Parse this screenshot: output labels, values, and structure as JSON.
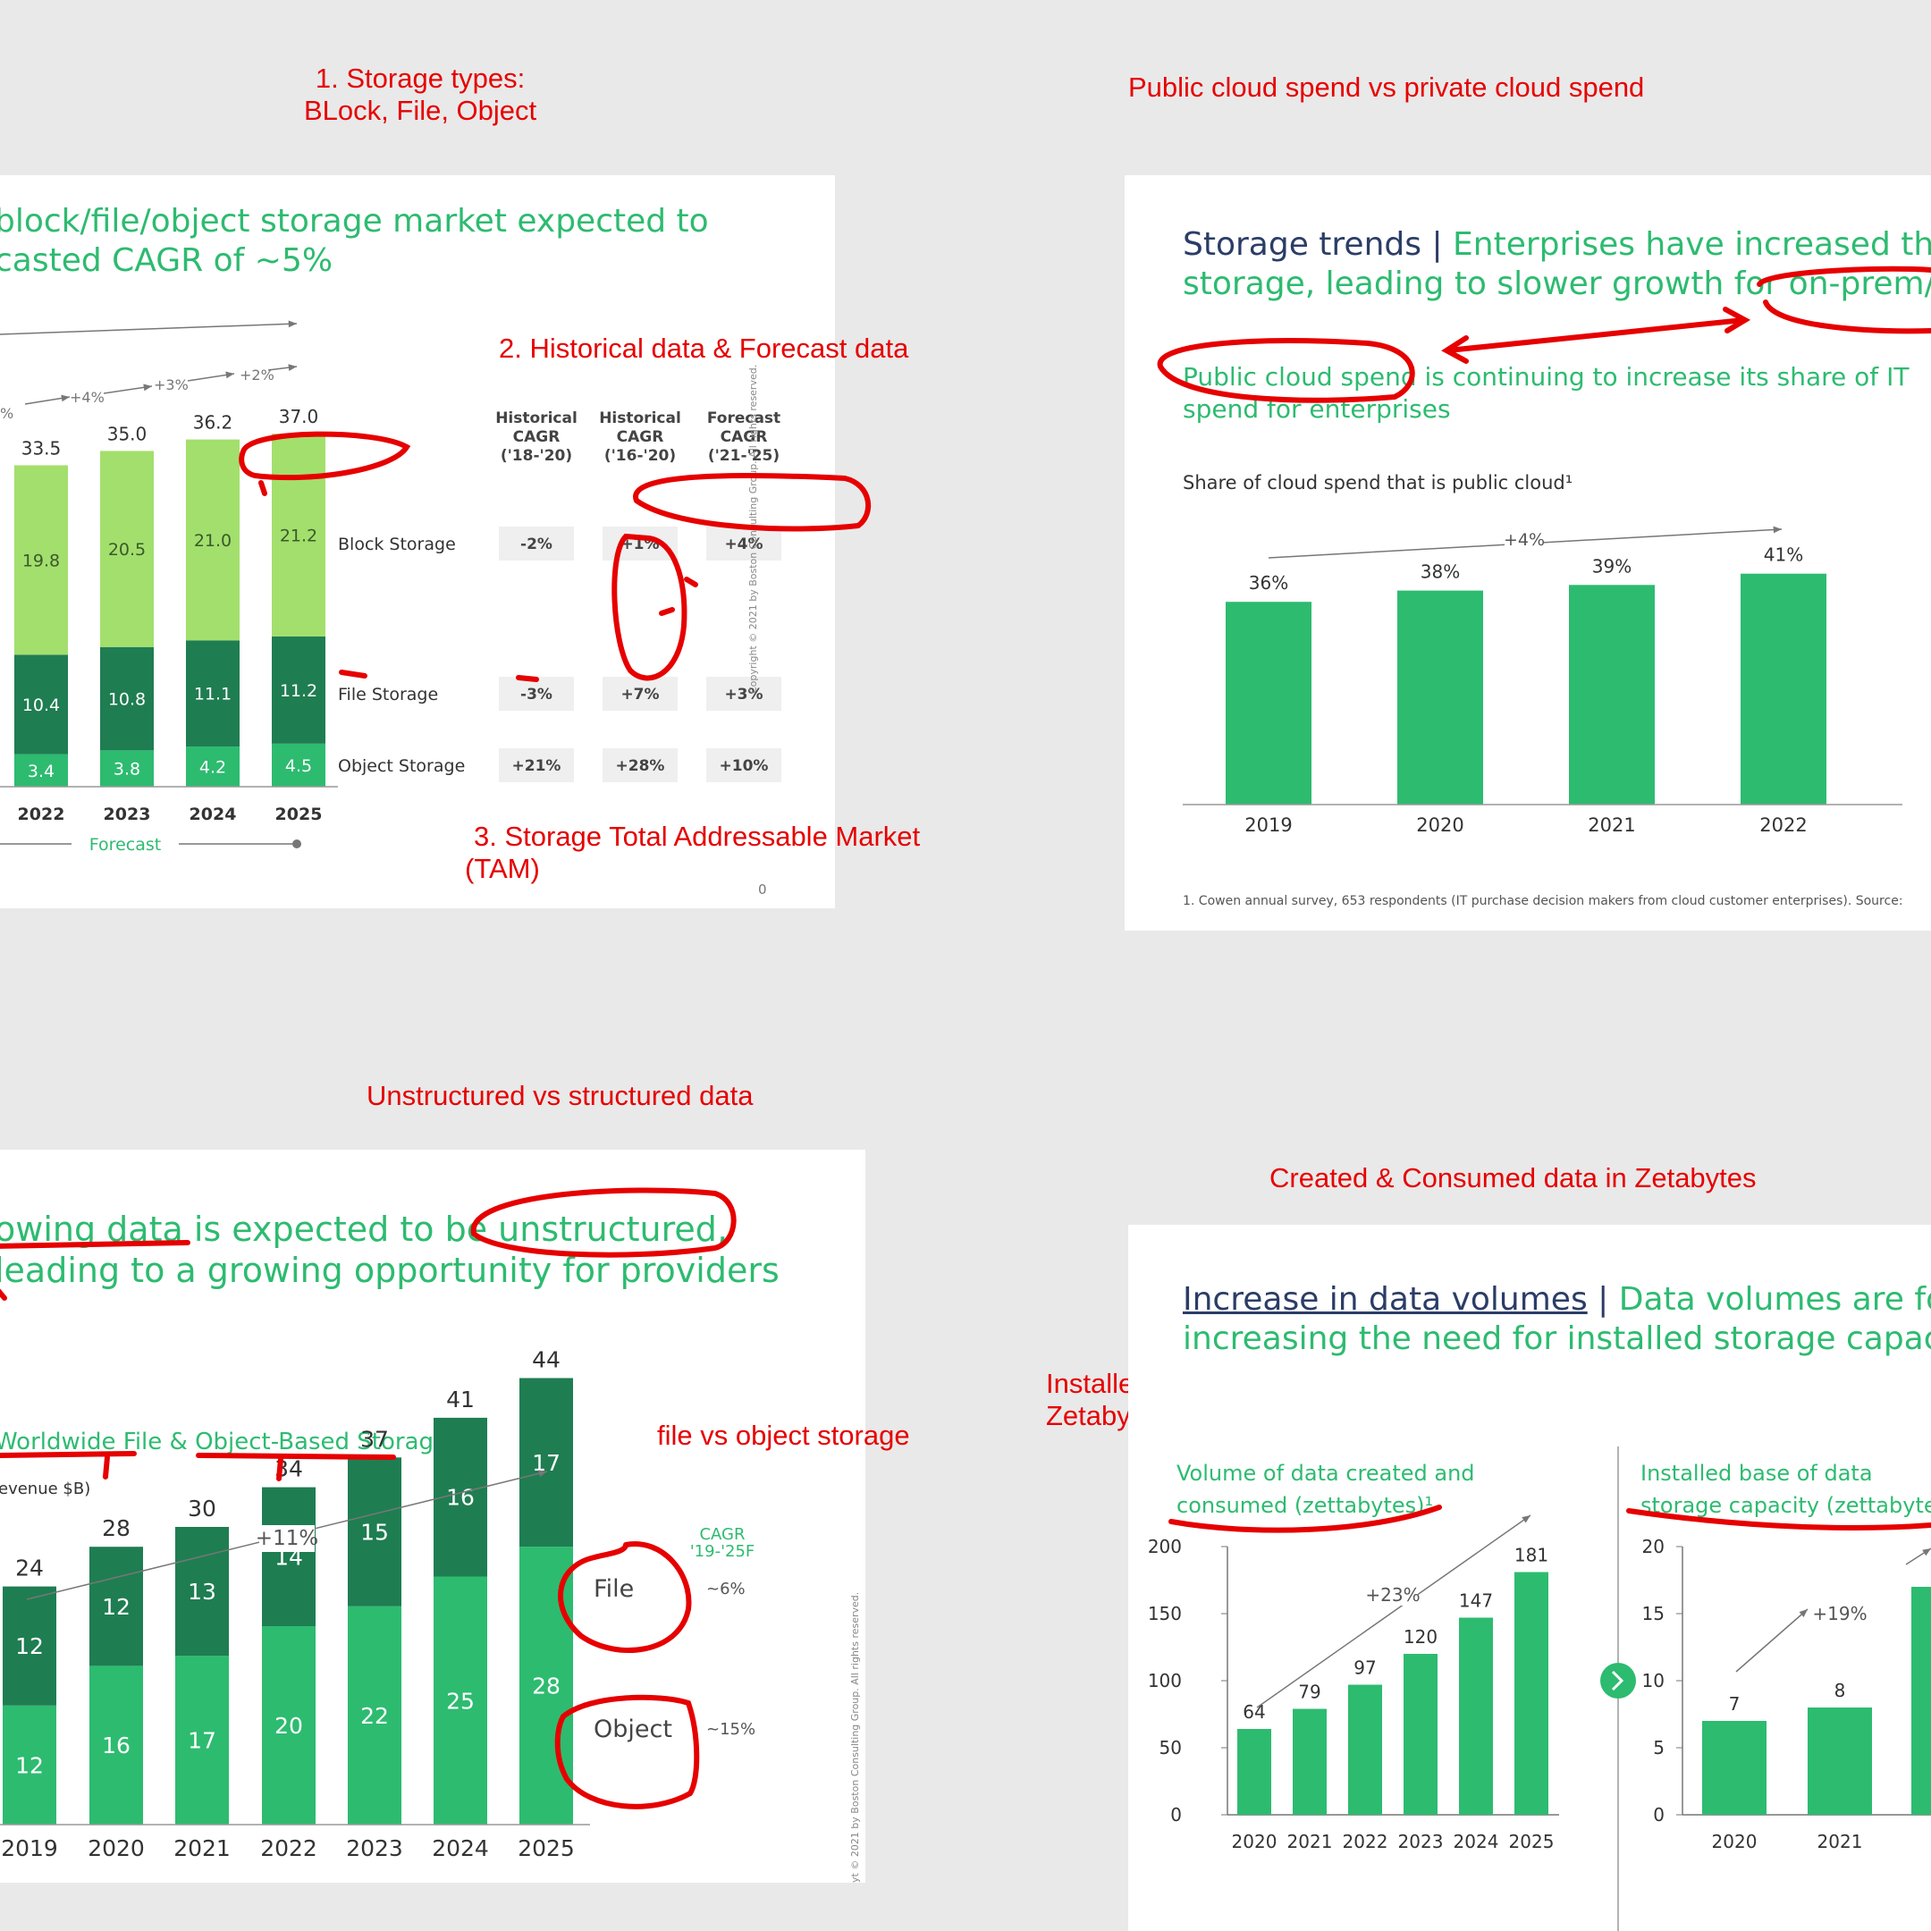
{
  "colors": {
    "dark": "#1f7d52",
    "mid": "#2dbb70",
    "light": "#a3df6d",
    "navy": "#2b3d67",
    "annot": "#e60000",
    "grey": "#555555"
  },
  "notes": {
    "storage_types_1": "1. Storage types:",
    "storage_types_2": "BLock, File, Object",
    "historical": "2. Historical data & Forecast data",
    "tam_1": "3. Storage Total Addressable Market",
    "tam_2": "(TAM)",
    "public_private": "Public cloud spend vs private cloud spend",
    "unstructured": "Unstructured vs structured data",
    "file_object": "file vs object storage",
    "created_consumed": "Created & Consumed data in Zetabytes",
    "installed_1": "Installed base of data in",
    "installed_2": "Zetabytes"
  },
  "slide1": {
    "title_1": "block/file/object storage market expected to",
    "title_2": "casted CAGR of ~5%",
    "forecast_label": "Forecast",
    "page_number": "0",
    "copyright": "Copyright © 2021 by Boston Consulting Group. All rights reserved.",
    "growth_labels": [
      "%",
      "+4%",
      "+3%",
      "+2%"
    ],
    "cagr_headers": [
      [
        "Historical",
        "CAGR",
        "('18-'20)"
      ],
      [
        "Historical",
        "CAGR",
        "('16-'20)"
      ],
      [
        "Forecast",
        "CAGR",
        "('21-'25)"
      ]
    ],
    "rows": [
      {
        "label": "Block Storage",
        "values": [
          "-2%",
          "+1%",
          "+4%"
        ]
      },
      {
        "label": "File Storage",
        "values": [
          "-3%",
          "+7%",
          "+3%"
        ]
      },
      {
        "label": "Object Storage",
        "values": [
          "+21%",
          "+28%",
          "+10%"
        ]
      }
    ]
  },
  "slide2": {
    "title_navy": "Storage trends",
    "title_sep": "|",
    "title_green_1": "Enterprises have increased the",
    "title_green_2": "storage, leading to slower growth for on-prem/p",
    "subtitle_1": "Public cloud spend is continuing to increase its share of IT",
    "subtitle_2": "spend for enterprises",
    "chart_caption": "Share of cloud spend that is public cloud¹",
    "growth": "+4%",
    "footnote": "1. Cowen annual survey, 653 respondents (IT purchase decision makers from cloud customer enterprises). Source:"
  },
  "slide3": {
    "title_1": "owing data is expected to be unstructured,",
    "title_2": "leading to a growing opportunity for providers",
    "subtitle": "Worldwide File & Object-Based Storage",
    "unit": "evenue $B)",
    "growth": "+11%",
    "cagr_header_1": "CAGR",
    "cagr_header_2": "'19-'25F",
    "legend": [
      {
        "name": "File",
        "cagr": "~6%"
      },
      {
        "name": "Object",
        "cagr": "~15%"
      }
    ],
    "copyright": "yt © 2021 by Boston Consulting Group. All rights reserved."
  },
  "slide4": {
    "title_navy": "Increase in data volumes",
    "title_sep": "|",
    "title_green_1": "Data volumes are for",
    "title_green_2": "increasing the need for installed storage capacit",
    "left_caption_1": "Volume of data created and",
    "left_caption_2": "consumed (zettabytes)¹",
    "right_caption_1": "Installed base of data",
    "right_caption_2": "storage capacity (zettabytes",
    "left_growth": "+23%",
    "right_growth": "+19%"
  },
  "chart_data": [
    {
      "type": "bar",
      "stacked": true,
      "title": "block/file/object storage market expected to ... casted CAGR of ~5%",
      "categories": [
        "2022",
        "2023",
        "2024",
        "2025"
      ],
      "totals": [
        33.5,
        35.0,
        36.2,
        37.0
      ],
      "series": [
        {
          "name": "Object Storage",
          "values": [
            3.4,
            3.8,
            4.2,
            4.5
          ]
        },
        {
          "name": "File Storage",
          "values": [
            10.4,
            10.8,
            11.1,
            11.2
          ]
        },
        {
          "name": "Block Storage",
          "values": [
            19.8,
            20.5,
            21.0,
            21.2
          ]
        }
      ],
      "ylim": [
        0,
        38.8
      ]
    },
    {
      "type": "bar",
      "title": "Share of cloud spend that is public cloud¹",
      "categories": [
        "2019",
        "2020",
        "2021",
        "2022"
      ],
      "values": [
        36,
        38,
        39,
        41
      ],
      "value_labels": [
        "36%",
        "38%",
        "39%",
        "41%"
      ],
      "ylim": [
        0,
        45
      ]
    },
    {
      "type": "bar",
      "stacked": true,
      "title": "Worldwide File & Object-Based Storage",
      "categories": [
        "2019",
        "2020",
        "2021",
        "2022",
        "2023",
        "2024",
        "2025"
      ],
      "totals": [
        24,
        28,
        30,
        34,
        37,
        41,
        44
      ],
      "series": [
        {
          "name": "Object",
          "values": [
            12,
            16,
            17,
            20,
            22,
            25,
            28
          ]
        },
        {
          "name": "File",
          "values": [
            12,
            12,
            13,
            14,
            15,
            16,
            17
          ]
        }
      ],
      "ylim": [
        0,
        48
      ]
    },
    {
      "type": "bar",
      "title": "Volume of data created and consumed (zettabytes)¹",
      "categories": [
        "2020",
        "2021",
        "2022",
        "2023",
        "2024",
        "2025"
      ],
      "values": [
        64,
        79,
        97,
        120,
        147,
        181
      ],
      "yticks": [
        0,
        50,
        100,
        150,
        200
      ],
      "ylim": [
        0,
        200
      ]
    },
    {
      "type": "bar",
      "title": "Installed base of data storage capacity (zettabytes",
      "categories": [
        "2020",
        "2021"
      ],
      "values": [
        7,
        8
      ],
      "yticks": [
        0,
        5,
        10,
        15,
        20
      ],
      "ylim": [
        0,
        20
      ]
    }
  ]
}
